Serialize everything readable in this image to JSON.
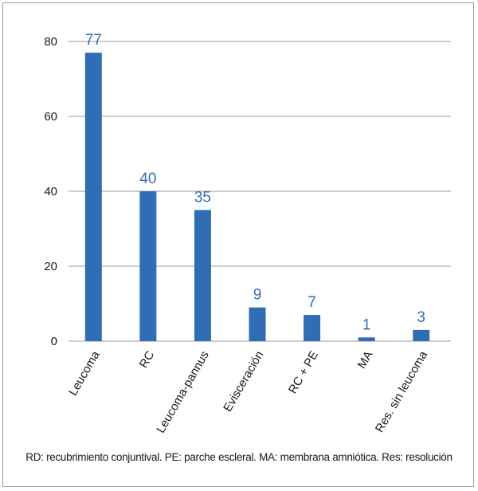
{
  "chart_data": {
    "type": "bar",
    "categories": [
      "Leucoma",
      "RC",
      "Leucoma-pannus",
      "Evisceración",
      "RC + PE",
      "MA",
      "Res. sin leucoma"
    ],
    "values": [
      77,
      40,
      35,
      9,
      7,
      1,
      3
    ],
    "yticks": [
      "0",
      "20",
      "40",
      "60",
      "80"
    ],
    "ylim": [
      0,
      80
    ],
    "grid": true,
    "bar_color": "#2f6eb5",
    "label_color": "#2f6eb5"
  },
  "footnote": "RD: recubrimiento conjuntival. PE: parche escleral. MA: membrana amniótica. Res: resolución"
}
